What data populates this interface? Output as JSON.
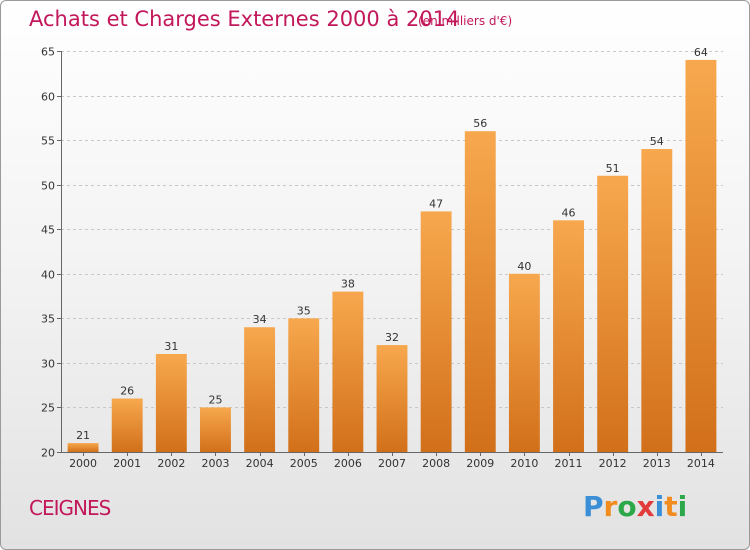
{
  "header": {
    "title": "Achats et Charges Externes 2000 à 2014",
    "subtitle": "(en milliers d'€)"
  },
  "footer": {
    "commune": "CEIGNES",
    "brand_letters": [
      "P",
      "r",
      "o",
      "x",
      "i",
      "t",
      "i"
    ],
    "brand_colors": [
      "#3a8fd6",
      "#f28c1e",
      "#2ca84a",
      "#e23b3b",
      "#3a8fd6",
      "#f28c1e",
      "#2ca84a"
    ]
  },
  "colors": {
    "bar_light": "#f7a84e",
    "bar_dark": "#d2701a",
    "title": "#c2185b",
    "grid": "#c8c8c8"
  },
  "chart_data": {
    "type": "bar",
    "title": "Achats et Charges Externes 2000 à 2014",
    "subtitle": "(en milliers d'€)",
    "xlabel": "",
    "ylabel": "",
    "categories": [
      "2000",
      "2001",
      "2002",
      "2003",
      "2004",
      "2005",
      "2006",
      "2007",
      "2008",
      "2009",
      "2010",
      "2011",
      "2012",
      "2013",
      "2014"
    ],
    "values": [
      21,
      26,
      31,
      25,
      34,
      35,
      38,
      32,
      47,
      56,
      40,
      46,
      51,
      54,
      64
    ],
    "ylim": [
      20,
      65
    ],
    "yticks": [
      20,
      25,
      30,
      35,
      40,
      45,
      50,
      55,
      60,
      65
    ],
    "grid": true,
    "data_labels": true
  }
}
